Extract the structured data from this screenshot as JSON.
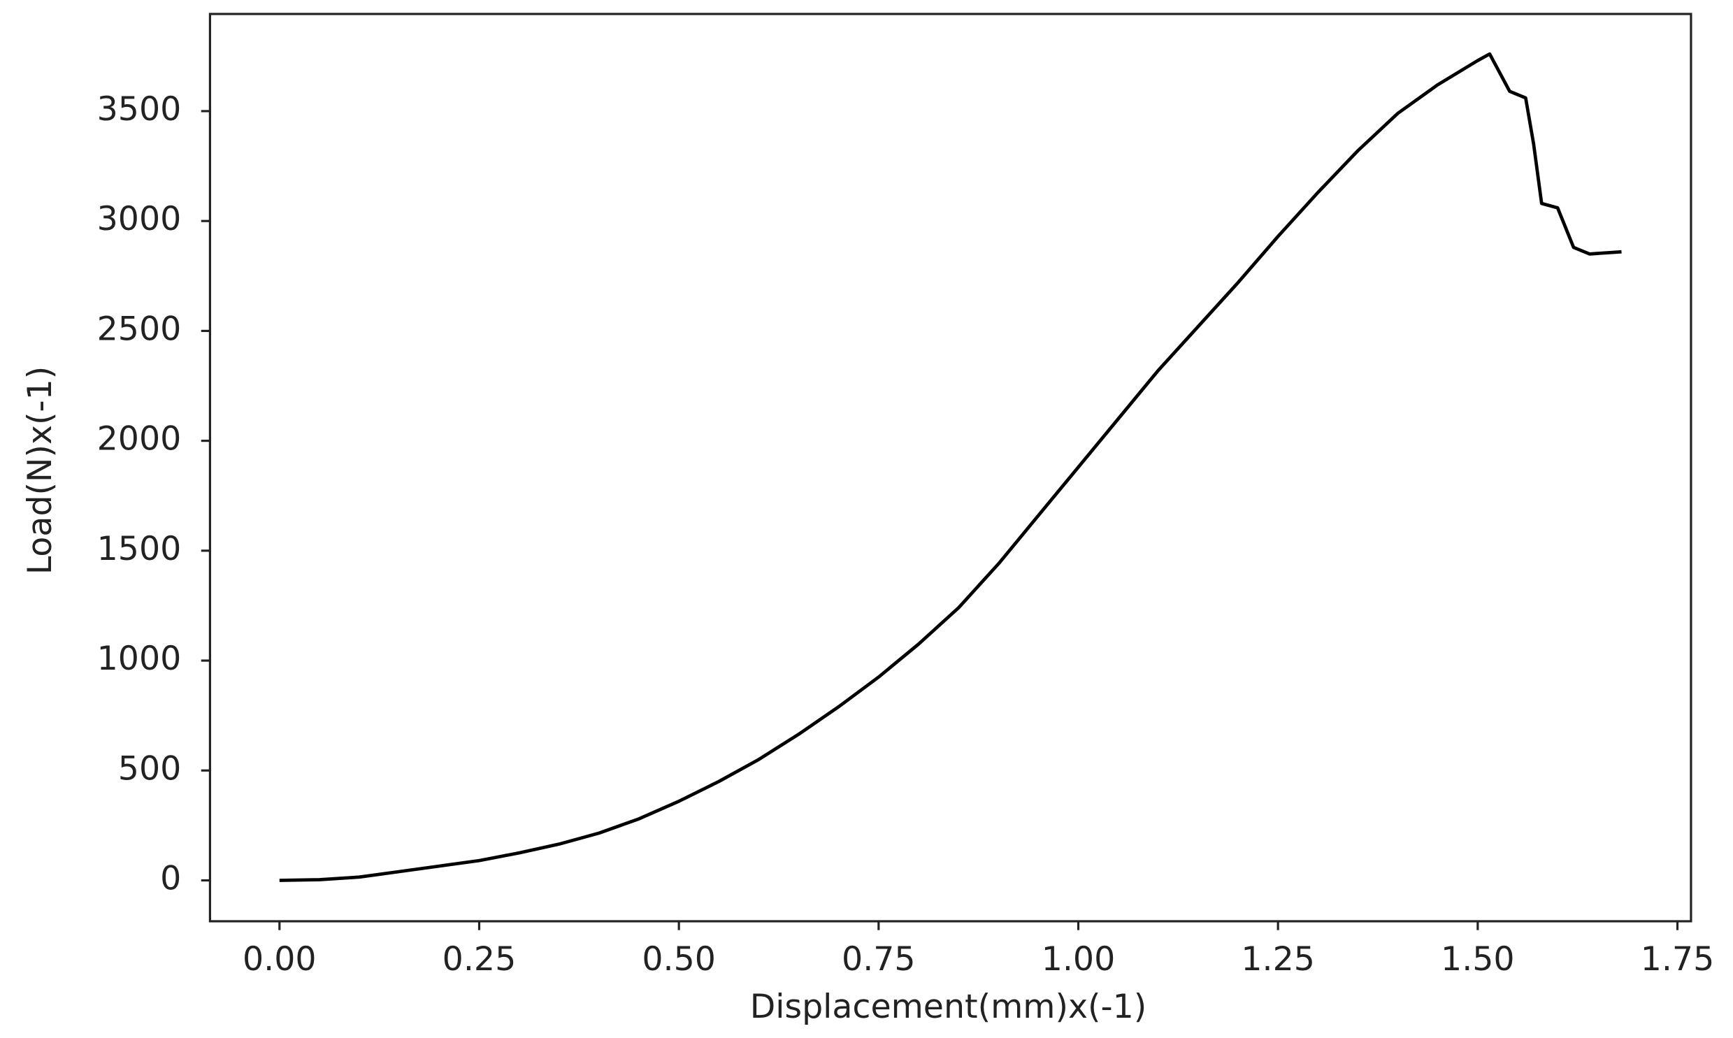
{
  "chart_data": {
    "type": "line",
    "x_label": "Displacement(mm)x(-1)",
    "y_label": "Load(N)x(-1)",
    "x": [
      0,
      0.05,
      0.1,
      0.15,
      0.2,
      0.25,
      0.3,
      0.35,
      0.4,
      0.45,
      0.5,
      0.55,
      0.6,
      0.65,
      0.7,
      0.75,
      0.8,
      0.85,
      0.9,
      0.95,
      1.0,
      1.05,
      1.1,
      1.15,
      1.2,
      1.25,
      1.3,
      1.35,
      1.4,
      1.45,
      1.5,
      1.515,
      1.54,
      1.56,
      1.57,
      1.58,
      1.6,
      1.62,
      1.64,
      1.68
    ],
    "series": [
      {
        "color": "#000000",
        "values": [
          0,
          3,
          15,
          40,
          65,
          90,
          125,
          165,
          215,
          280,
          360,
          450,
          550,
          665,
          790,
          925,
          1075,
          1240,
          1440,
          1660,
          1880,
          2100,
          2320,
          2520,
          2720,
          2930,
          3130,
          3320,
          3490,
          3620,
          3730,
          3760,
          3590,
          3560,
          3350,
          3080,
          3060,
          2880,
          2850,
          2860
        ]
      }
    ],
    "xlim": [
      -0.087,
      1.767
    ],
    "ylim": [
      -186,
      3942
    ],
    "xticks": [
      {
        "value": 0,
        "label": "0.00"
      },
      {
        "value": 0.25,
        "label": "0.25"
      },
      {
        "value": 0.5,
        "label": "0.50"
      },
      {
        "value": 0.75,
        "label": "0.75"
      },
      {
        "value": 1.0,
        "label": "1.00"
      },
      {
        "value": 1.25,
        "label": "1.25"
      },
      {
        "value": 1.5,
        "label": "1.50"
      },
      {
        "value": 1.75,
        "label": "1.75"
      }
    ],
    "yticks": [
      0,
      500,
      1000,
      1500,
      2000,
      2500,
      3000,
      3500
    ],
    "grid": false
  }
}
